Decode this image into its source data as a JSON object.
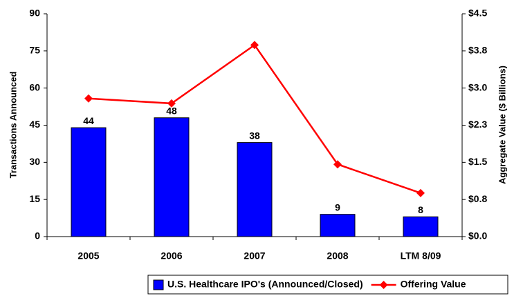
{
  "chart_data": {
    "type": "bar",
    "categories": [
      "2005",
      "2006",
      "2007",
      "2008",
      "LTM 8/09"
    ],
    "series": [
      {
        "name": "U.S. Healthcare IPO's (Announced/Closed)",
        "type": "bar",
        "color": "#0000ff",
        "values": [
          44,
          48,
          38,
          9,
          8
        ]
      },
      {
        "name": "Offering Value",
        "type": "line",
        "axis": "y2",
        "color": "#ff0000",
        "values": [
          2.79,
          2.69,
          3.87,
          1.46,
          0.88
        ]
      }
    ],
    "ylabel": "Transactions Announced",
    "y2label": "Aggregate Value ($ Billions)",
    "ylim": [
      0,
      90
    ],
    "yticks": [
      0,
      15,
      30,
      45,
      60,
      75,
      90
    ],
    "y2lim": [
      0,
      4.5
    ],
    "y2ticks": [
      {
        "value": 0,
        "label": "$0.0"
      },
      {
        "value": 0.75,
        "label": "$0.8"
      },
      {
        "value": 1.5,
        "label": "$1.5"
      },
      {
        "value": 2.25,
        "label": "$2.3"
      },
      {
        "value": 3.0,
        "label": "$3.0"
      },
      {
        "value": 3.75,
        "label": "$3.8"
      },
      {
        "value": 4.5,
        "label": "$4.5"
      }
    ],
    "grid": false,
    "legend": "bottom"
  }
}
